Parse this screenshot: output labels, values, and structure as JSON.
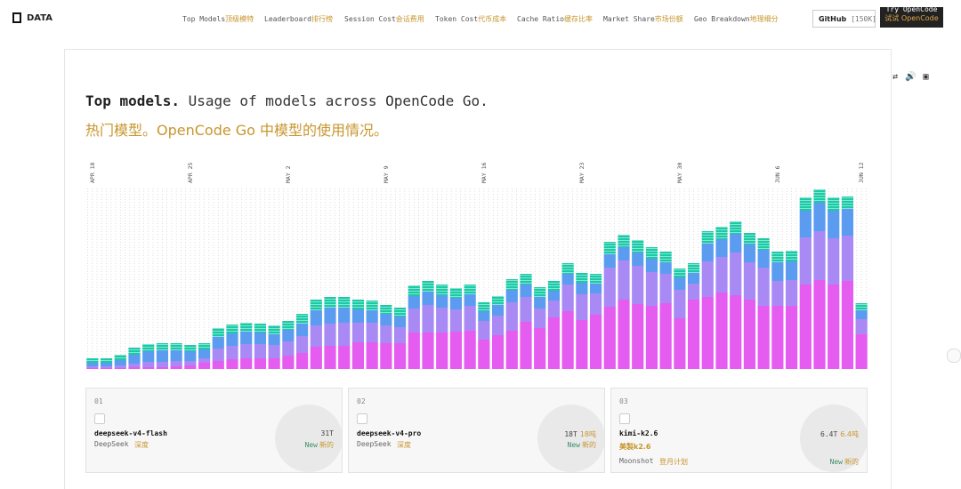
{
  "header": {
    "logo": "DATA",
    "nav": [
      {
        "en": "Top Models",
        "zh": "顶级模特"
      },
      {
        "en": "Leaderboard",
        "zh": "排行榜"
      },
      {
        "en": "Session Cost",
        "zh": "会话费用"
      },
      {
        "en": "Token Cost",
        "zh": "代币成本"
      },
      {
        "en": "Cache Ratio",
        "zh": "缓存比率"
      },
      {
        "en": "Market Share",
        "zh": "市场份额"
      },
      {
        "en": "Geo Breakdown",
        "zh": "地理细分"
      }
    ],
    "github": "GitHub",
    "github_count": "[150K]",
    "cta_en": "Try OpenCode",
    "cta_zh": "试试 OpenCode"
  },
  "section": {
    "title": "Top models.",
    "subtitle": "Usage of models across OpenCode Go.",
    "subtitle_zh": "热门模型。OpenCode Go 中模型的使用情况。"
  },
  "chart_data": {
    "type": "bar",
    "stacked": true,
    "categories": [
      "APR 18",
      null,
      null,
      null,
      null,
      null,
      null,
      "APR 25",
      null,
      null,
      null,
      null,
      null,
      null,
      "MAY 2",
      null,
      null,
      null,
      null,
      null,
      null,
      "MAY 9",
      null,
      null,
      null,
      null,
      null,
      null,
      "MAY 16",
      null,
      null,
      null,
      null,
      null,
      null,
      "MAY 23",
      null,
      null,
      null,
      null,
      null,
      null,
      "MAY 30",
      null,
      null,
      null,
      null,
      null,
      null,
      "JUN 6",
      null,
      null,
      null,
      null,
      null,
      "JUN 12"
    ],
    "series": [
      {
        "color": "#e55cf0",
        "values": [
          1,
          1,
          1,
          2,
          2,
          2,
          3,
          4,
          7,
          9,
          11,
          12,
          12,
          12,
          15,
          18,
          25,
          26,
          26,
          30,
          30,
          29,
          29,
          41,
          41,
          41,
          42,
          43,
          33,
          38,
          43,
          53,
          46,
          58,
          65,
          55,
          61,
          70,
          78,
          73,
          71,
          74,
          57,
          78,
          81,
          86,
          83,
          78,
          71,
          71,
          71,
          95,
          100,
          95,
          99,
          39
        ]
      },
      {
        "color": "#a98af5",
        "values": [
          2,
          2,
          3,
          4,
          6,
          6,
          6,
          5,
          5,
          14,
          15,
          16,
          16,
          15,
          16,
          19,
          24,
          25,
          26,
          22,
          22,
          20,
          18,
          27,
          31,
          28,
          25,
          28,
          21,
          22,
          32,
          28,
          22,
          19,
          30,
          29,
          24,
          44,
          44,
          43,
          38,
          33,
          32,
          18,
          40,
          40,
          48,
          42,
          43,
          28,
          29,
          53,
          55,
          52,
          51,
          17
        ]
      },
      {
        "color": "#5b9cf0",
        "values": [
          4,
          4,
          6,
          10,
          12,
          13,
          12,
          11,
          10,
          13,
          14,
          14,
          13,
          12,
          13,
          14,
          17,
          18,
          17,
          15,
          14,
          13,
          12,
          14,
          15,
          14,
          13,
          13,
          11,
          12,
          14,
          14,
          13,
          11,
          12,
          13,
          11,
          15,
          15,
          15,
          15,
          13,
          14,
          12,
          20,
          20,
          21,
          20,
          20,
          21,
          21,
          30,
          32,
          31,
          30,
          10
        ]
      },
      {
        "color": "#1cc9a6",
        "values": [
          5,
          5,
          6,
          8,
          8,
          8,
          8,
          7,
          7,
          10,
          10,
          10,
          10,
          10,
          10,
          11,
          12,
          12,
          12,
          11,
          11,
          10,
          10,
          12,
          12,
          12,
          11,
          11,
          10,
          10,
          12,
          12,
          11,
          11,
          12,
          11,
          11,
          14,
          14,
          14,
          13,
          12,
          10,
          11,
          14,
          14,
          14,
          13,
          13,
          12,
          12,
          15,
          15,
          15,
          14,
          8
        ]
      }
    ],
    "ylim": [
      0,
      210
    ]
  },
  "cards": [
    {
      "rank": "01",
      "model": "deepseek-v4-flash",
      "provider": "DeepSeek",
      "provider_zh": "深度",
      "tokens": "31T",
      "badge": "New",
      "badge_zh": "新的"
    },
    {
      "rank": "02",
      "model": "deepseek-v4-pro",
      "provider": "DeepSeek",
      "provider_zh": "深度",
      "tokens": "18T",
      "tokens_zh": "18吨",
      "badge": "New",
      "badge_zh": "新的"
    },
    {
      "rank": "03",
      "model": "kimi-k2.6",
      "alias_zh": "美製k2.6",
      "provider": "Moonshot",
      "provider_zh": "登月计划",
      "tokens": "6.4T",
      "tokens_zh": "6.4吨",
      "badge": "New",
      "badge_zh": "新的"
    }
  ]
}
